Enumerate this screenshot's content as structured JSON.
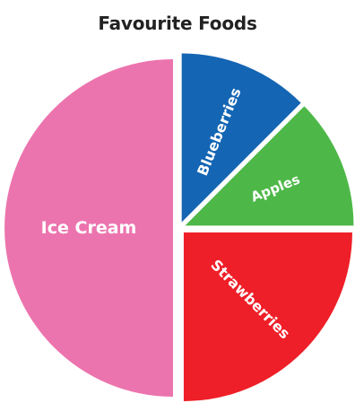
{
  "chart_data": {
    "type": "pie",
    "title": "Favourite Foods",
    "slices": [
      {
        "label": "Ice Cream",
        "value": 50,
        "color": "#ec74ae"
      },
      {
        "label": "Blueberries",
        "value": 12.5,
        "color": "#1465b3"
      },
      {
        "label": "Apples",
        "value": 12.5,
        "color": "#4db848"
      },
      {
        "label": "Strawberries",
        "value": 25,
        "color": "#ee1f28"
      }
    ],
    "start_angle_deg": 0,
    "direction": "clockwise-from-top, right half first",
    "exploded": true,
    "legend": "none (labels inside slices)"
  }
}
